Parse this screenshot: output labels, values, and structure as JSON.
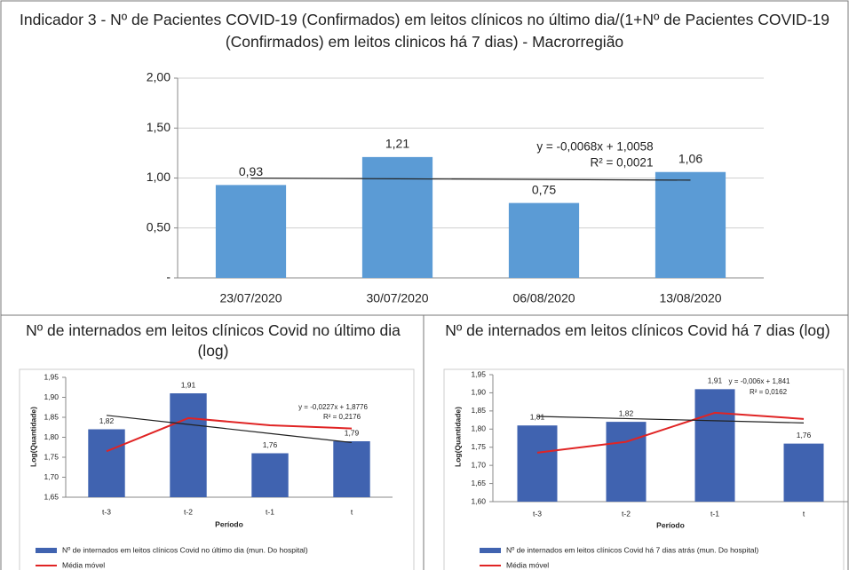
{
  "chart_data": [
    {
      "type": "bar",
      "title": "Indicador 3 - Nº de Pacientes COVID-19 (Confirmados) em leitos clínicos no último dia/(1+Nº de Pacientes COVID-19 (Confirmados) em leitos clinicos há 7 dias) - Macrorregião",
      "categories": [
        "23/07/2020",
        "30/07/2020",
        "06/08/2020",
        "13/08/2020"
      ],
      "values": [
        0.93,
        1.21,
        0.75,
        1.06
      ],
      "value_labels": [
        "0,93",
        "1,21",
        "0,75",
        "1,06"
      ],
      "color": "#5b9bd5",
      "trendline": {
        "values": [
          0.999,
          0.9922,
          0.9854,
          0.9786
        ],
        "equation": "y = -0,0068x + 1,0058",
        "r2": "R² = 0,0021"
      },
      "ylim": [
        0,
        2
      ],
      "yticks": [
        {
          "value": 0,
          "label": "-"
        },
        {
          "value": 0.5,
          "label": "0,50"
        },
        {
          "value": 1,
          "label": "1,00"
        },
        {
          "value": 1.5,
          "label": "1,50"
        },
        {
          "value": 2,
          "label": "2,00"
        }
      ],
      "grid": true
    },
    {
      "type": "bar",
      "title": "Nº de internados em leitos clínicos Covid no último dia (log)",
      "y_label": "Log(Quantidade)",
      "x_label": "Período",
      "categories": [
        "t-3",
        "t-2",
        "t-1",
        "t"
      ],
      "series": [
        {
          "name": "Nº de internados em leitos clínicos Covid no último dia (mun. Do hospital)",
          "color": "#4063b0",
          "type": "bar",
          "values": [
            1.82,
            1.91,
            1.76,
            1.79
          ],
          "value_labels": [
            "1,82",
            "1,91",
            "1,76",
            "1,79"
          ]
        },
        {
          "name": "Média móvel",
          "color": "#e02424",
          "type": "line",
          "values": [
            1.765,
            1.848,
            1.83,
            1.822
          ]
        }
      ],
      "trendline": {
        "values": [
          1.8549,
          1.8322,
          1.8095,
          1.7868
        ],
        "equation": "y = -0,0227x + 1,8776",
        "r2": "R² = 0,2176"
      },
      "ylim": [
        1.65,
        1.95
      ],
      "yticks": [
        {
          "value": 1.65,
          "label": "1,65"
        },
        {
          "value": 1.7,
          "label": "1,70"
        },
        {
          "value": 1.75,
          "label": "1,75"
        },
        {
          "value": 1.8,
          "label": "1,80"
        },
        {
          "value": 1.85,
          "label": "1,85"
        },
        {
          "value": 1.9,
          "label": "1,90"
        },
        {
          "value": 1.95,
          "label": "1,95"
        }
      ],
      "grid": false
    },
    {
      "type": "bar",
      "title": "Nº de internados em leitos clínicos Covid há 7 dias (log)",
      "y_label": "Log(Quantidade)",
      "x_label": "Período",
      "categories": [
        "t-3",
        "t-2",
        "t-1",
        "t"
      ],
      "series": [
        {
          "name": "Nº de internados em leitos clínicos Covid há 7 dias atrás (mun. Do hospital)",
          "color": "#4063b0",
          "type": "bar",
          "values": [
            1.81,
            1.82,
            1.91,
            1.76
          ],
          "value_labels": [
            "1,81",
            "1,82",
            "1,91",
            "1,76"
          ]
        },
        {
          "name": "Média móvel",
          "color": "#e02424",
          "type": "line",
          "values": [
            1.735,
            1.765,
            1.845,
            1.828
          ]
        }
      ],
      "trendline": {
        "values": [
          1.835,
          1.829,
          1.823,
          1.817
        ],
        "equation": "y = -0,006x + 1,841",
        "r2": "R² = 0,0162"
      },
      "ylim": [
        1.6,
        1.95
      ],
      "yticks": [
        {
          "value": 1.6,
          "label": "1,60"
        },
        {
          "value": 1.65,
          "label": "1,65"
        },
        {
          "value": 1.7,
          "label": "1,70"
        },
        {
          "value": 1.75,
          "label": "1,75"
        },
        {
          "value": 1.8,
          "label": "1,80"
        },
        {
          "value": 1.85,
          "label": "1,85"
        },
        {
          "value": 1.9,
          "label": "1,90"
        },
        {
          "value": 1.95,
          "label": "1,95"
        }
      ],
      "grid": false
    }
  ]
}
